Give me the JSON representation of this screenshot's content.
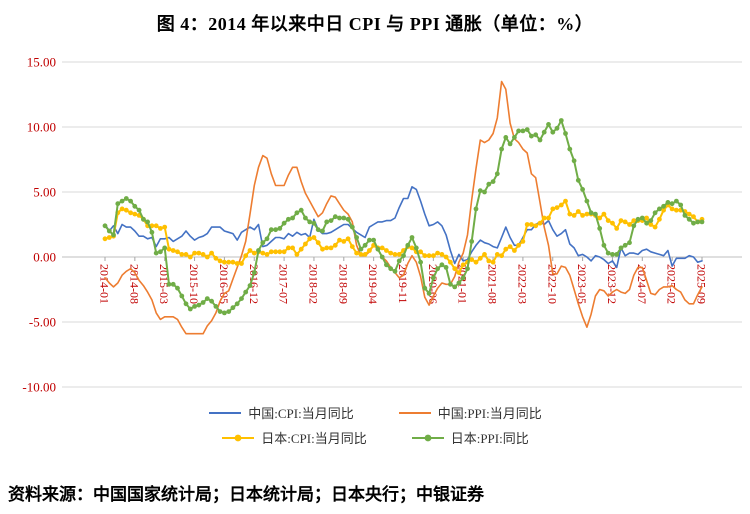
{
  "title": "图 4：2014 年以来中日 CPI 与 PPI 通胀（单位：%）",
  "source_note": "资料来源：中国国家统计局；日本统计局；日本央行；中银证券",
  "chart_data": {
    "type": "line",
    "x_start": "2014-01",
    "x_end": "2025-09",
    "x_freq": "monthly",
    "n_points": 141,
    "tick_labels": [
      "2014-01",
      "2014-08",
      "2015-03",
      "2015-10",
      "2016-05",
      "2016-12",
      "2017-07",
      "2018-02",
      "2018-09",
      "2019-04",
      "2019-11",
      "2020-06",
      "2021-01",
      "2021-08",
      "2022-03",
      "2022-10",
      "2023-05",
      "2023-12",
      "2024-07",
      "2025-02",
      "2025-09"
    ],
    "y_ticks": [
      "15.00",
      "10.00",
      "5.00",
      "0.00",
      "-5.00",
      "-10.00"
    ],
    "ylim": [
      -10,
      15
    ],
    "grid": true,
    "legend_position": "bottom",
    "axis_label_color": "#C00000",
    "grid_color": "#D9D9D9",
    "zero_line_color": "#BFBFBF",
    "series": [
      {
        "name": "中国:CPI:当月同比",
        "color": "#4472C4",
        "marker": "none",
        "values": [
          2.5,
          2.0,
          2.4,
          1.8,
          2.5,
          2.3,
          2.3,
          2.0,
          1.6,
          1.6,
          1.4,
          1.5,
          0.8,
          1.4,
          1.4,
          1.5,
          1.2,
          1.4,
          1.6,
          2.0,
          1.6,
          1.3,
          1.5,
          1.6,
          1.8,
          2.3,
          2.3,
          2.3,
          2.0,
          1.9,
          1.8,
          1.3,
          1.9,
          2.1,
          2.3,
          2.1,
          2.5,
          0.8,
          0.9,
          1.2,
          1.5,
          1.5,
          1.4,
          1.8,
          1.6,
          1.9,
          1.7,
          1.8,
          1.5,
          2.9,
          2.1,
          1.8,
          1.8,
          1.9,
          2.1,
          2.3,
          2.5,
          2.5,
          2.2,
          1.9,
          1.7,
          1.5,
          2.3,
          2.5,
          2.7,
          2.7,
          2.8,
          2.8,
          3.0,
          3.8,
          4.5,
          4.5,
          5.4,
          5.2,
          4.3,
          3.3,
          2.4,
          2.5,
          2.7,
          2.4,
          1.7,
          0.5,
          -0.5,
          0.2,
          -0.3,
          -0.2,
          0.4,
          0.9,
          1.3,
          1.1,
          1.0,
          0.8,
          0.7,
          1.5,
          2.3,
          1.5,
          0.9,
          0.9,
          1.5,
          2.1,
          2.1,
          2.5,
          2.7,
          2.5,
          2.8,
          2.1,
          1.6,
          1.8,
          2.1,
          1.0,
          0.7,
          0.1,
          0.2,
          0.0,
          -0.3,
          0.1,
          0.0,
          -0.2,
          -0.5,
          -0.3,
          -0.8,
          0.7,
          0.1,
          0.3,
          0.3,
          0.2,
          0.5,
          0.6,
          0.4,
          0.3,
          0.2,
          0.1,
          0.5,
          -0.7,
          -0.1,
          -0.1,
          -0.1,
          0.1,
          0.0,
          -0.4,
          -0.3
        ]
      },
      {
        "name": "中国:PPI:当月同比",
        "color": "#ED7D31",
        "marker": "none",
        "values": [
          -1.6,
          -2.0,
          -2.3,
          -2.0,
          -1.4,
          -1.1,
          -0.9,
          -1.2,
          -1.8,
          -2.2,
          -2.7,
          -3.3,
          -4.3,
          -4.8,
          -4.6,
          -4.6,
          -4.6,
          -4.8,
          -5.4,
          -5.9,
          -5.9,
          -5.9,
          -5.9,
          -5.9,
          -5.3,
          -4.9,
          -4.3,
          -3.4,
          -2.8,
          -2.6,
          -1.7,
          -0.8,
          0.1,
          1.2,
          3.3,
          5.5,
          6.9,
          7.8,
          7.6,
          6.4,
          5.5,
          5.5,
          5.5,
          6.3,
          6.9,
          6.9,
          5.8,
          4.9,
          4.3,
          3.7,
          3.1,
          3.4,
          4.1,
          4.7,
          4.6,
          4.1,
          3.6,
          3.3,
          2.7,
          0.9,
          0.1,
          0.1,
          0.4,
          0.9,
          0.6,
          0.0,
          -0.3,
          -0.8,
          -1.2,
          -1.6,
          -1.4,
          -0.5,
          0.1,
          -0.4,
          -1.5,
          -3.1,
          -3.7,
          -3.0,
          -2.4,
          -2.0,
          -2.1,
          -2.1,
          -1.5,
          -0.4,
          0.3,
          1.7,
          4.4,
          6.8,
          9.0,
          8.8,
          9.0,
          9.5,
          10.7,
          13.5,
          12.9,
          10.3,
          9.1,
          8.8,
          8.3,
          8.0,
          6.4,
          6.1,
          4.2,
          2.3,
          0.9,
          -1.3,
          -1.3,
          -0.7,
          -0.8,
          -1.4,
          -2.5,
          -3.6,
          -4.6,
          -5.4,
          -4.4,
          -3.0,
          -2.5,
          -2.6,
          -3.0,
          -2.7,
          -2.5,
          -2.7,
          -2.8,
          -2.5,
          -1.4,
          -0.8,
          -0.8,
          -1.8,
          -2.8,
          -2.9,
          -2.5,
          -2.3,
          -2.3,
          -2.2,
          -2.5,
          -2.7,
          -3.3,
          -3.6,
          -3.6,
          -2.9,
          -2.3
        ]
      },
      {
        "name": "日本:CPI:当月同比",
        "color": "#FFC000",
        "marker": "circle",
        "values": [
          1.4,
          1.5,
          1.6,
          3.4,
          3.7,
          3.6,
          3.4,
          3.3,
          3.2,
          2.9,
          2.4,
          2.4,
          2.4,
          2.2,
          2.3,
          0.6,
          0.5,
          0.4,
          0.2,
          0.2,
          0.0,
          0.3,
          0.3,
          0.2,
          0.0,
          0.3,
          -0.1,
          -0.3,
          -0.4,
          -0.4,
          -0.4,
          -0.5,
          -0.5,
          0.1,
          0.5,
          0.3,
          0.4,
          0.3,
          0.2,
          0.4,
          0.4,
          0.4,
          0.4,
          0.7,
          0.7,
          0.2,
          0.6,
          1.0,
          1.4,
          1.5,
          1.1,
          0.6,
          0.7,
          0.7,
          0.9,
          1.3,
          1.2,
          1.4,
          0.8,
          0.3,
          0.2,
          0.2,
          0.5,
          0.9,
          0.7,
          0.7,
          0.5,
          0.3,
          0.2,
          0.2,
          0.5,
          0.8,
          0.7,
          0.4,
          0.4,
          0.1,
          0.1,
          0.1,
          0.3,
          0.2,
          0.0,
          -0.4,
          -0.9,
          -1.2,
          -0.6,
          -0.4,
          -0.2,
          -0.4,
          -0.1,
          0.2,
          -0.3,
          -0.4,
          0.2,
          0.1,
          0.6,
          0.8,
          0.5,
          0.9,
          1.2,
          2.5,
          2.5,
          2.4,
          2.6,
          3.0,
          3.0,
          3.7,
          3.8,
          4.0,
          4.3,
          3.3,
          3.2,
          3.5,
          3.2,
          3.3,
          3.3,
          3.2,
          3.0,
          3.3,
          2.8,
          2.6,
          2.2,
          2.8,
          2.7,
          2.5,
          2.8,
          2.8,
          2.8,
          3.0,
          2.5,
          2.3,
          2.9,
          3.6,
          4.0,
          3.7,
          3.6,
          3.6,
          3.5,
          3.3,
          3.1,
          2.7,
          2.9
        ]
      },
      {
        "name": "日本:PPI:同比",
        "color": "#70AD47",
        "marker": "circle",
        "values": [
          2.4,
          2.0,
          1.7,
          4.1,
          4.3,
          4.5,
          4.3,
          3.9,
          3.6,
          2.9,
          2.7,
          1.9,
          0.3,
          0.4,
          0.7,
          -2.1,
          -2.1,
          -2.4,
          -3.0,
          -3.6,
          -4.0,
          -3.8,
          -3.7,
          -3.5,
          -3.2,
          -3.4,
          -3.8,
          -4.2,
          -4.3,
          -4.2,
          -3.9,
          -3.6,
          -3.2,
          -2.7,
          -2.2,
          -1.2,
          0.5,
          1.1,
          1.4,
          2.1,
          2.1,
          2.2,
          2.6,
          2.9,
          3.0,
          3.4,
          3.6,
          3.0,
          2.7,
          2.6,
          2.1,
          2.0,
          2.7,
          2.8,
          3.1,
          3.0,
          3.0,
          2.9,
          2.3,
          1.5,
          0.6,
          0.9,
          1.3,
          1.3,
          0.6,
          0.0,
          -0.6,
          -0.9,
          -1.1,
          -0.3,
          0.1,
          0.9,
          1.5,
          0.7,
          -0.4,
          -2.4,
          -2.8,
          -1.6,
          -0.9,
          -0.6,
          -0.8,
          -2.1,
          -2.3,
          -2.0,
          -1.6,
          -0.9,
          1.2,
          3.7,
          5.1,
          5.0,
          5.6,
          5.8,
          6.4,
          8.3,
          9.2,
          8.7,
          9.2,
          9.7,
          9.7,
          9.8,
          9.3,
          9.4,
          9.0,
          9.6,
          10.2,
          9.6,
          9.9,
          10.5,
          9.5,
          8.3,
          7.4,
          5.9,
          5.2,
          4.3,
          3.4,
          3.3,
          2.2,
          0.9,
          0.3,
          0.2,
          0.2,
          0.7,
          0.9,
          1.1,
          2.4,
          2.9,
          3.0,
          2.6,
          2.8,
          3.4,
          3.7,
          3.9,
          4.2,
          4.1,
          4.3,
          4.0,
          3.2,
          2.9,
          2.6,
          2.7,
          2.7
        ]
      }
    ]
  }
}
